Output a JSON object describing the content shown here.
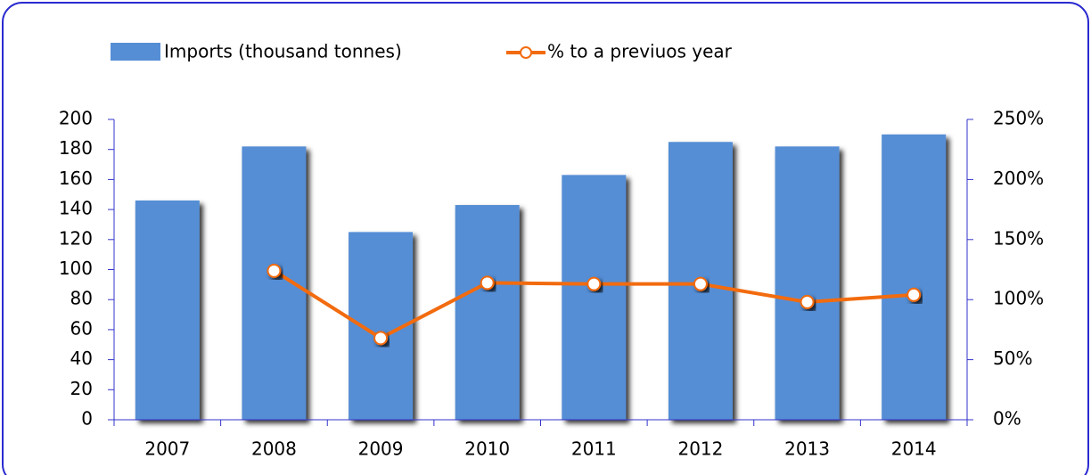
{
  "chart_data": {
    "type": "bar",
    "categories": [
      "2007",
      "2008",
      "2009",
      "2010",
      "2011",
      "2012",
      "2013",
      "2014"
    ],
    "series": [
      {
        "name": "Imports (thousand tonnes)",
        "type": "bar",
        "color": "#558ed5",
        "values": [
          146,
          182,
          125,
          143,
          163,
          185,
          182,
          190
        ]
      },
      {
        "name": "% to a  previuos year",
        "type": "line",
        "axis": "y2",
        "color": "#f26b0f",
        "values": [
          null,
          124,
          68,
          114,
          113,
          113,
          98,
          104
        ]
      }
    ],
    "ylim": [
      0,
      200
    ],
    "yticks": [
      0,
      20,
      40,
      60,
      80,
      100,
      120,
      140,
      160,
      180,
      200
    ],
    "y2lim": [
      0,
      250
    ],
    "y2ticks": [
      {
        "value": 0,
        "label": "0%"
      },
      {
        "value": 50,
        "label": "50%"
      },
      {
        "value": 100,
        "label": "100%"
      },
      {
        "value": 150,
        "label": "150%"
      },
      {
        "value": 200,
        "label": "200%"
      },
      {
        "value": 250,
        "label": "250%"
      }
    ],
    "legend": "top"
  }
}
